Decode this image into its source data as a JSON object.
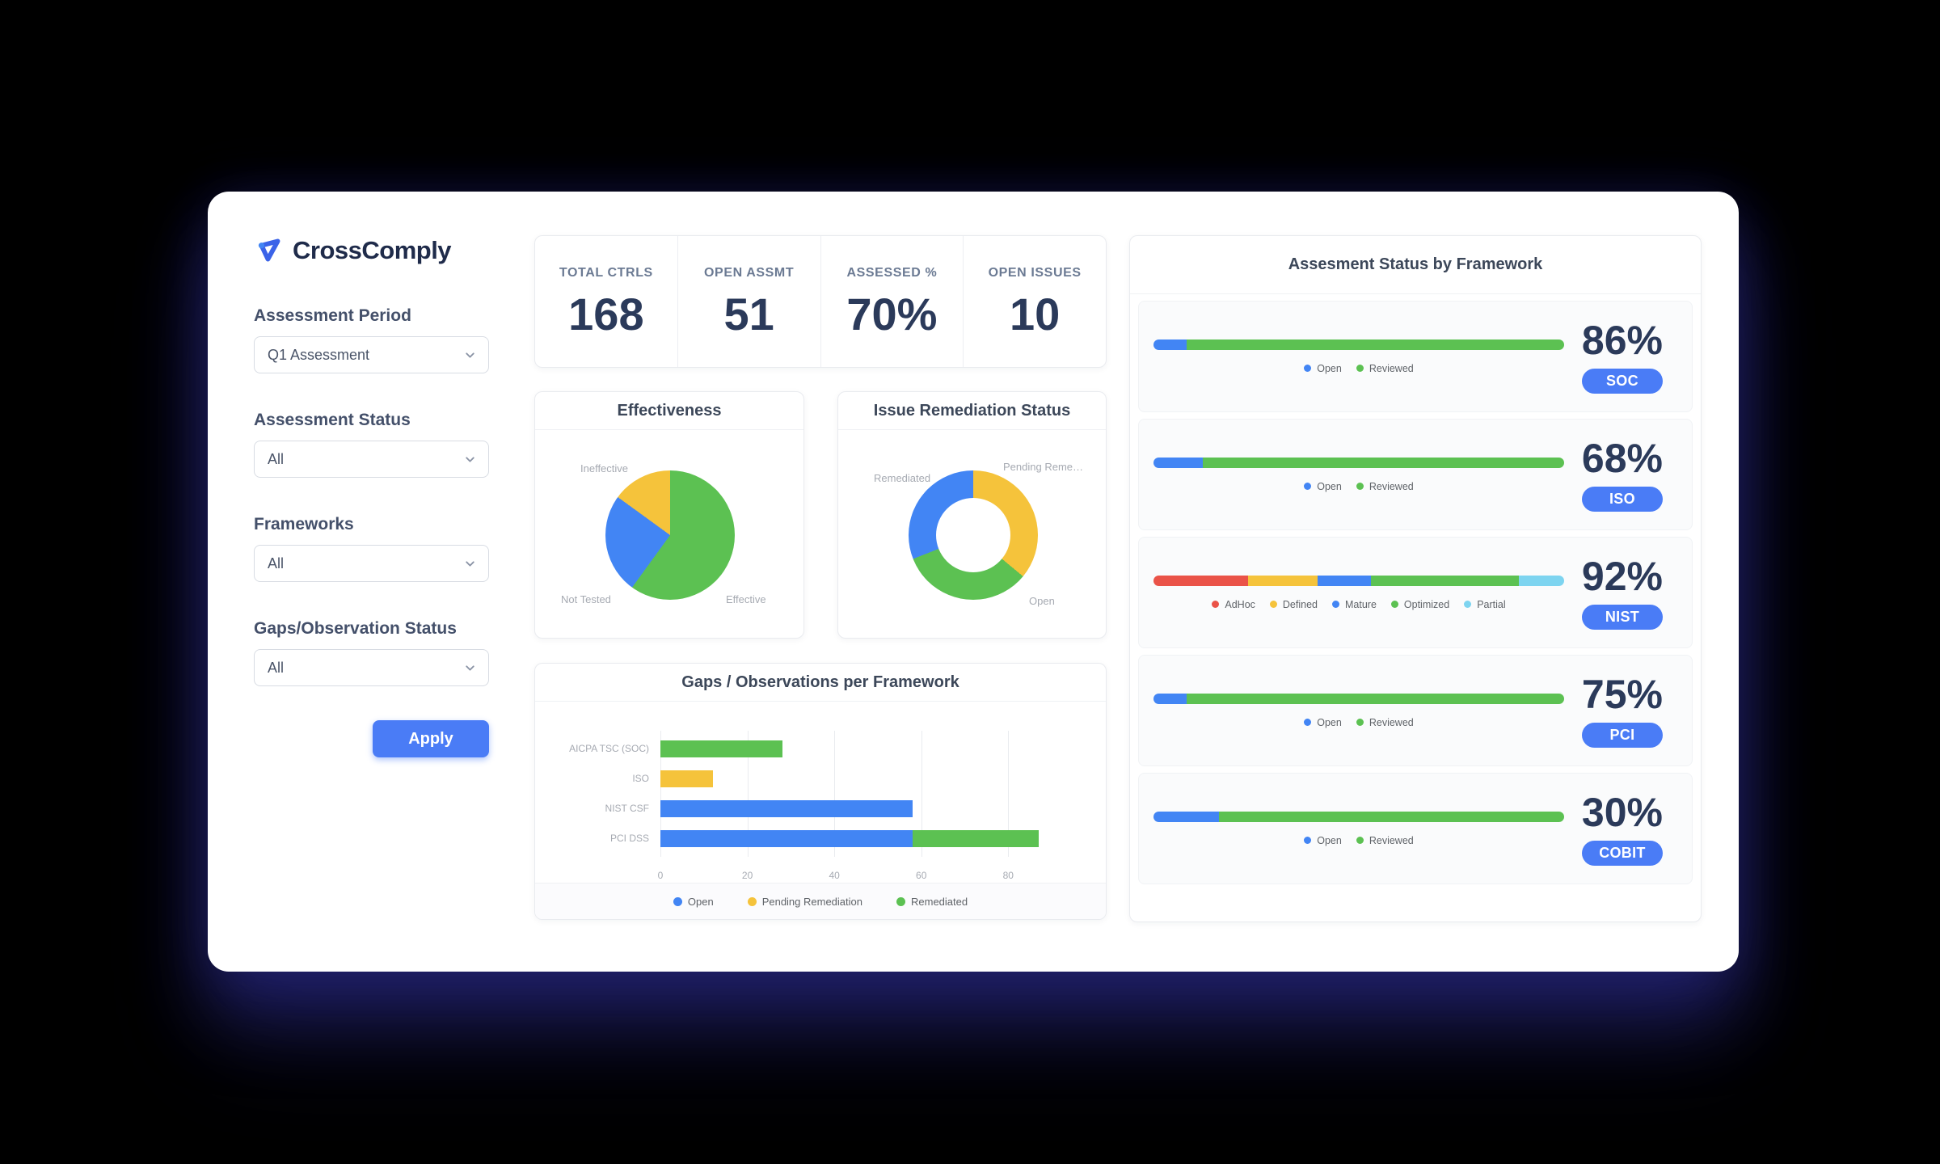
{
  "app": {
    "name": "CrossComply"
  },
  "colors": {
    "blue": "#4285F4",
    "green": "#5CC152",
    "yellow": "#F5C33B",
    "red": "#EA5348",
    "light_blue": "#7DD4F0",
    "accent": "#4A7CF6"
  },
  "sidebar": {
    "filters": [
      {
        "label": "Assessment Period",
        "value": "Q1 Assessment"
      },
      {
        "label": "Assessment Status",
        "value": "All"
      },
      {
        "label": "Frameworks",
        "value": "All"
      },
      {
        "label": "Gaps/Observation Status",
        "value": "All"
      }
    ],
    "apply_label": "Apply"
  },
  "kpis": [
    {
      "label": "TOTAL CTRLS",
      "value": "168"
    },
    {
      "label": "OPEN ASSMT",
      "value": "51"
    },
    {
      "label": "ASSESSED %",
      "value": "70%"
    },
    {
      "label": "OPEN ISSUES",
      "value": "10"
    }
  ],
  "chart_data": [
    {
      "id": "effectiveness",
      "type": "pie",
      "title": "Effectiveness",
      "slices": [
        {
          "label": "Effective",
          "value": 60,
          "color": "#5CC152"
        },
        {
          "label": "Not Tested",
          "value": 25,
          "color": "#4285F4"
        },
        {
          "label": "Ineffective",
          "value": 15,
          "color": "#F5C33B"
        }
      ],
      "labels": {
        "top_left": "Ineffective",
        "bottom_left": "Not Tested",
        "bottom_right": "Effective"
      }
    },
    {
      "id": "issue-remediation",
      "type": "pie",
      "subtype": "donut",
      "title": "Issue Remediation Status",
      "slices": [
        {
          "label": "Pending Remediation",
          "value": 36,
          "color": "#F5C33B"
        },
        {
          "label": "Open",
          "value": 33,
          "color": "#5CC152"
        },
        {
          "label": "Remediated",
          "value": 31,
          "color": "#4285F4"
        }
      ],
      "labels": {
        "left": "Remediated",
        "top_right": "Pending Reme…",
        "bottom_right": "Open"
      }
    },
    {
      "id": "gaps-per-framework",
      "type": "bar",
      "orientation": "horizontal",
      "title": "Gaps / Observations per Framework",
      "categories": [
        "AICPA TSC (SOC)",
        "ISO",
        "NIST CSF",
        "PCI DSS"
      ],
      "bars": [
        {
          "category": "AICPA TSC (SOC)",
          "segments": [
            {
              "name": "Remediated",
              "value": 28
            }
          ]
        },
        {
          "category": "ISO",
          "segments": [
            {
              "name": "Pending Remediation",
              "value": 12
            }
          ]
        },
        {
          "category": "NIST CSF",
          "segments": [
            {
              "name": "Open",
              "value": 58
            }
          ]
        },
        {
          "category": "PCI DSS",
          "segments": [
            {
              "name": "Open",
              "value": 58
            },
            {
              "name": "Remediated",
              "value": 29
            }
          ]
        }
      ],
      "xticks": [
        0,
        20,
        40,
        60,
        80
      ],
      "xmax": 95,
      "legend": [
        {
          "name": "Open",
          "color": "#4285F4"
        },
        {
          "name": "Pending Remediation",
          "color": "#F5C33B"
        },
        {
          "name": "Remediated",
          "color": "#5CC152"
        }
      ]
    }
  ],
  "framework_status": {
    "title": "Assesment Status by Framework",
    "rows": [
      {
        "pct": "86%",
        "badge": "SOC",
        "segments": [
          {
            "label": "Open",
            "color": "#4285F4",
            "value": 8
          },
          {
            "label": "Reviewed",
            "color": "#5CC152",
            "value": 92
          }
        ]
      },
      {
        "pct": "68%",
        "badge": "ISO",
        "segments": [
          {
            "label": "Open",
            "color": "#4285F4",
            "value": 12
          },
          {
            "label": "Reviewed",
            "color": "#5CC152",
            "value": 88
          }
        ]
      },
      {
        "pct": "92%",
        "badge": "NIST",
        "segments": [
          {
            "label": "AdHoc",
            "color": "#EA5348",
            "value": 23
          },
          {
            "label": "Defined",
            "color": "#F5C33B",
            "value": 17
          },
          {
            "label": "Mature",
            "color": "#4285F4",
            "value": 13
          },
          {
            "label": "Optimized",
            "color": "#5CC152",
            "value": 36
          },
          {
            "label": "Partial",
            "color": "#7DD4F0",
            "value": 11
          }
        ]
      },
      {
        "pct": "75%",
        "badge": "PCI",
        "segments": [
          {
            "label": "Open",
            "color": "#4285F4",
            "value": 8
          },
          {
            "label": "Reviewed",
            "color": "#5CC152",
            "value": 92
          }
        ]
      },
      {
        "pct": "30%",
        "badge": "COBIT",
        "segments": [
          {
            "label": "Open",
            "color": "#4285F4",
            "value": 16
          },
          {
            "label": "Reviewed",
            "color": "#5CC152",
            "value": 84
          }
        ]
      }
    ]
  }
}
